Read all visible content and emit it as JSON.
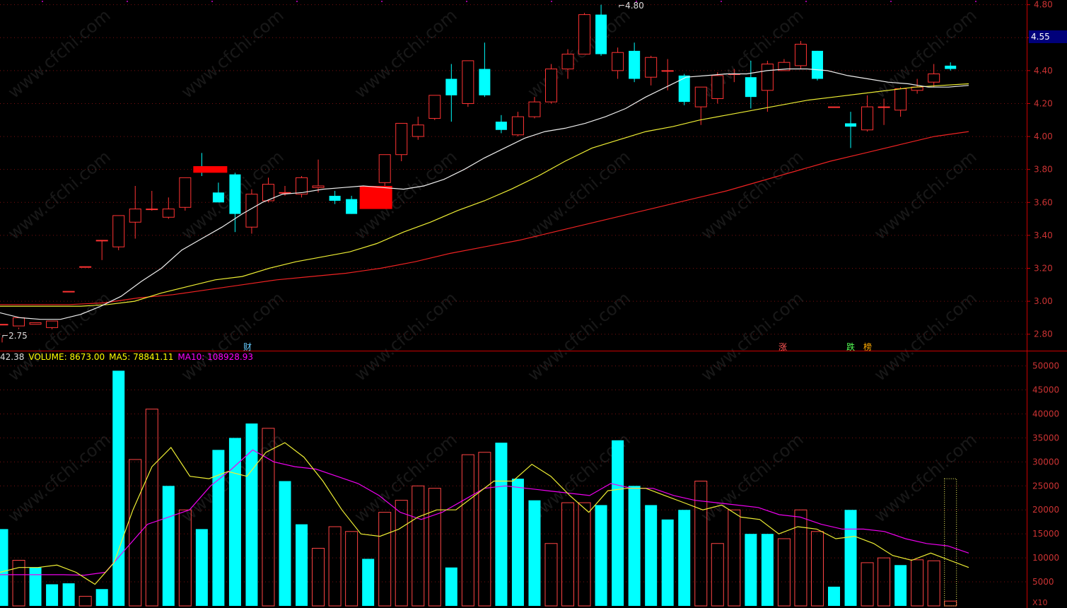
{
  "chart_data": [
    {
      "type": "candlestick",
      "title": "",
      "ylim": [
        2.7,
        4.82
      ],
      "y_ticks": [
        "4.80",
        "4.60",
        "4.40",
        "4.20",
        "4.00",
        "3.80",
        "3.60",
        "3.40",
        "3.20",
        "3.00",
        "2.80"
      ],
      "current_price": "4.55",
      "annotations": {
        "high_label": "4.80",
        "low_label": "2.75",
        "markers": [
          "财",
          "涨",
          "跌",
          "榜"
        ]
      },
      "candles": [
        [
          2.86,
          2.86,
          2.78,
          2.75
        ],
        [
          2.85,
          2.9,
          2.84,
          2.83
        ],
        [
          2.86,
          2.87,
          2.83,
          2.83
        ],
        [
          2.84,
          2.88,
          2.88,
          2.83
        ],
        [
          3.06,
          3.06,
          3.06,
          3.06
        ],
        [
          3.21,
          3.21,
          3.21,
          3.21
        ],
        [
          3.37,
          3.37,
          3.37,
          3.25
        ],
        [
          3.33,
          3.52,
          3.52,
          3.31
        ],
        [
          3.48,
          3.56,
          3.7,
          3.38
        ],
        [
          3.56,
          3.56,
          3.67,
          3.55
        ],
        [
          3.51,
          3.56,
          3.63,
          3.5
        ],
        [
          3.57,
          3.75,
          3.75,
          3.55
        ],
        [
          3.82,
          3.8,
          3.9,
          3.76
        ],
        [
          3.66,
          3.6,
          3.72,
          3.6
        ],
        [
          3.77,
          3.53,
          3.78,
          3.42
        ],
        [
          3.45,
          3.65,
          3.68,
          3.41
        ],
        [
          3.61,
          3.71,
          3.75,
          3.6
        ],
        [
          3.66,
          3.66,
          3.7,
          3.64
        ],
        [
          3.65,
          3.75,
          3.76,
          3.63
        ],
        [
          3.69,
          3.7,
          3.86,
          3.66
        ],
        [
          3.64,
          3.61,
          3.67,
          3.59
        ],
        [
          3.62,
          3.53,
          3.64,
          3.53
        ],
        [
          3.7,
          3.57,
          3.7,
          3.57
        ],
        [
          3.72,
          3.89,
          3.89,
          3.7
        ],
        [
          3.89,
          4.08,
          4.08,
          3.85
        ],
        [
          4.0,
          4.07,
          4.12,
          3.98
        ],
        [
          4.11,
          4.25,
          4.25,
          4.1
        ],
        [
          4.35,
          4.25,
          4.44,
          4.09
        ],
        [
          4.2,
          4.46,
          4.46,
          4.18
        ],
        [
          4.41,
          4.25,
          4.57,
          4.24
        ],
        [
          4.09,
          4.04,
          4.13,
          4.02
        ],
        [
          4.01,
          4.12,
          4.15,
          4.0
        ],
        [
          4.12,
          4.21,
          4.24,
          4.11
        ],
        [
          4.21,
          4.41,
          4.44,
          4.2
        ],
        [
          4.41,
          4.5,
          4.53,
          4.35
        ],
        [
          4.5,
          4.74,
          4.75,
          4.5
        ],
        [
          4.74,
          4.5,
          4.8,
          4.49
        ],
        [
          4.4,
          4.51,
          4.54,
          4.35
        ],
        [
          4.52,
          4.35,
          4.57,
          4.33
        ],
        [
          4.36,
          4.48,
          4.49,
          4.31
        ],
        [
          4.4,
          4.4,
          4.47,
          4.28
        ],
        [
          4.37,
          4.21,
          4.38,
          4.19
        ],
        [
          4.18,
          4.3,
          4.3,
          4.07
        ],
        [
          4.23,
          4.37,
          4.39,
          4.2
        ],
        [
          4.38,
          4.38,
          4.41,
          4.33
        ],
        [
          4.36,
          4.24,
          4.46,
          4.17
        ],
        [
          4.28,
          4.44,
          4.46,
          4.15
        ],
        [
          4.4,
          4.45,
          4.47,
          4.4
        ],
        [
          4.43,
          4.56,
          4.58,
          4.41
        ],
        [
          4.52,
          4.35,
          4.52,
          4.34
        ],
        [
          4.18,
          4.18,
          4.18,
          4.18
        ],
        [
          4.08,
          4.06,
          4.15,
          3.93
        ],
        [
          4.04,
          4.18,
          4.25,
          4.03
        ],
        [
          4.18,
          4.18,
          4.23,
          4.07
        ],
        [
          4.16,
          4.29,
          4.3,
          4.12
        ],
        [
          4.28,
          4.3,
          4.35,
          4.26
        ],
        [
          4.33,
          4.38,
          4.44,
          4.3
        ],
        [
          4.43,
          4.41,
          4.45,
          4.4
        ]
      ],
      "ma_lines": {
        "ma_white": [
          2.93,
          2.9,
          2.89,
          2.89,
          2.92,
          2.97,
          3.03,
          3.12,
          3.2,
          3.31,
          3.38,
          3.45,
          3.53,
          3.6,
          3.65,
          3.66,
          3.68,
          3.69,
          3.7,
          3.69,
          3.68,
          3.7,
          3.74,
          3.8,
          3.87,
          3.93,
          3.99,
          4.03,
          4.05,
          4.08,
          4.12,
          4.17,
          4.24,
          4.3,
          4.36,
          4.37,
          4.38,
          4.38,
          4.4,
          4.41,
          4.41,
          4.4,
          4.37,
          4.35,
          4.33,
          4.32,
          4.3,
          4.3,
          4.31
        ],
        "ma_yellow": [
          2.97,
          2.97,
          2.97,
          2.97,
          2.98,
          3.0,
          3.05,
          3.09,
          3.13,
          3.15,
          3.2,
          3.24,
          3.27,
          3.3,
          3.35,
          3.42,
          3.48,
          3.55,
          3.61,
          3.68,
          3.76,
          3.85,
          3.93,
          3.98,
          4.03,
          4.06,
          4.1,
          4.13,
          4.16,
          4.19,
          4.22,
          4.24,
          4.26,
          4.28,
          4.3,
          4.31,
          4.32
        ],
        "ma_red": [
          2.98,
          2.98,
          2.98,
          2.99,
          3.02,
          3.04,
          3.07,
          3.1,
          3.13,
          3.15,
          3.17,
          3.2,
          3.24,
          3.29,
          3.33,
          3.37,
          3.42,
          3.47,
          3.52,
          3.57,
          3.62,
          3.67,
          3.73,
          3.79,
          3.85,
          3.9,
          3.95,
          4.0,
          4.03
        ]
      }
    },
    {
      "type": "bar",
      "title": "",
      "ylim": [
        0,
        52000
      ],
      "y_ticks": [
        "50000",
        "45000",
        "40000",
        "35000",
        "30000",
        "25000",
        "20000",
        "15000",
        "10000",
        "5000"
      ],
      "axis_unit": "X10",
      "legend": {
        "prefix": "42.38",
        "volume_label": "VOLUME: 8673.00",
        "ma5_label": "MA5: 78841.11",
        "ma10_label": "MA10: 108928.93"
      },
      "values": [
        16000,
        9500,
        8000,
        4500,
        4700,
        2000,
        3500,
        49000,
        30500,
        41000,
        25000,
        20000,
        16000,
        32500,
        35000,
        38000,
        37000,
        26000,
        17000,
        12000,
        16500,
        15500,
        9800,
        19500,
        22000,
        25000,
        24500,
        8000,
        31500,
        32000,
        34000,
        26500,
        22000,
        13000,
        21500,
        21500,
        21000,
        34500,
        25000,
        21000,
        18000,
        20000,
        26000,
        13000,
        20000,
        15000,
        15000,
        14000,
        20000,
        15500,
        4000,
        20000,
        9000,
        10000,
        8500,
        9600,
        9400,
        1000
      ],
      "directions": "dudddudduududdddudduuuduuuuduuddduuudddddduuudduuudduuduuud",
      "ma5": [
        7000,
        8000,
        8000,
        8500,
        7000,
        4500,
        9000,
        20000,
        29000,
        33000,
        27000,
        26500,
        28000,
        27000,
        32000,
        34000,
        31000,
        26000,
        20000,
        15000,
        14500,
        16000,
        18500,
        20000,
        20000,
        23000,
        26000,
        26000,
        29500,
        27000,
        23000,
        19500,
        24000,
        24500,
        24500,
        23000,
        21500,
        20000,
        21000,
        18500,
        18000,
        15000,
        16500,
        16000,
        14000,
        14500,
        13000,
        10500,
        9500,
        11000,
        9500,
        8000
      ],
      "ma10": [
        6500,
        6500,
        6500,
        6500,
        6400,
        7000,
        12000,
        17000,
        18500,
        20000,
        25000,
        28500,
        32500,
        30000,
        29000,
        28500,
        27000,
        25500,
        23000,
        19500,
        18000,
        19500,
        22000,
        24500,
        25000,
        24500,
        24000,
        23500,
        23000,
        25500,
        24500,
        24500,
        23000,
        22000,
        21500,
        21000,
        20500,
        19000,
        18500,
        17000,
        16000,
        16000,
        15500,
        14000,
        13000,
        12500,
        11000
      ]
    }
  ]
}
